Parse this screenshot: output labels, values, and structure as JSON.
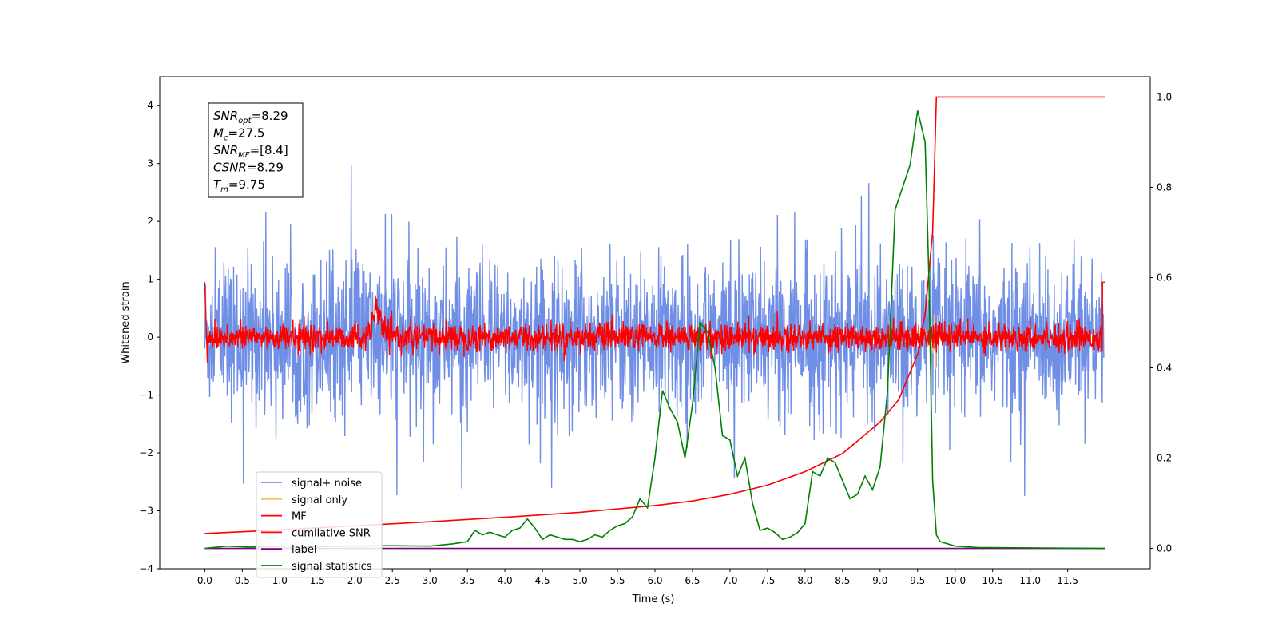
{
  "chart_data": {
    "type": "line",
    "title": "",
    "xlabel": "Time (s)",
    "ylabel": "Whitened strain",
    "y2label": "",
    "xlim": [
      -0.6,
      12.6
    ],
    "ylim": [
      -4,
      4.5
    ],
    "y2lim": [
      -0.045,
      1.045
    ],
    "xticks": [
      "0.0",
      "0.5",
      "1.0",
      "1.5",
      "2.0",
      "2.5",
      "3.0",
      "3.5",
      "4.0",
      "4.5",
      "5.0",
      "5.5",
      "6.0",
      "6.5",
      "7.0",
      "7.5",
      "8.0",
      "8.5",
      "9.0",
      "9.5",
      "10.0",
      "10.5",
      "11.0",
      "11.5"
    ],
    "xtick_values": [
      0,
      0.5,
      1,
      1.5,
      2,
      2.5,
      3,
      3.5,
      4,
      4.5,
      5,
      5.5,
      6,
      6.5,
      7,
      7.5,
      8,
      8.5,
      9,
      9.5,
      10,
      10.5,
      11,
      11.5
    ],
    "yticks": [
      "4",
      "3",
      "2",
      "1",
      "0",
      "−1",
      "−2",
      "−3",
      "−4"
    ],
    "ytick_values": [
      4,
      3,
      2,
      1,
      0,
      -1,
      -2,
      -3,
      -4
    ],
    "y2ticks": [
      "1.0",
      "0.8",
      "0.6",
      "0.4",
      "0.2",
      "0.0"
    ],
    "y2tick_values": [
      1.0,
      0.8,
      0.6,
      0.4,
      0.2,
      0.0
    ],
    "grid": false,
    "legend_position": "lower-left",
    "series": [
      {
        "name": "signal+ noise",
        "axis": "left",
        "color": "#6f8ee6",
        "noise_std": 0.65,
        "x_start": 0,
        "x_end": 11.98
      },
      {
        "name": "signal only",
        "axis": "left",
        "color": "#f5c26b",
        "chirp_peak_time": 9.75,
        "peak_amplitude": 0.55
      },
      {
        "name": "MF",
        "axis": "left",
        "color": "#ff0000",
        "noise_std": 0.12,
        "bump_time": 2.3,
        "bump_amplitude": 0.45
      },
      {
        "name": "cumilative SNR",
        "axis": "right",
        "color": "#ff0000",
        "x": [
          0,
          1,
          2,
          3,
          4,
          5,
          6,
          6.5,
          7,
          7.5,
          8,
          8.5,
          9,
          9.25,
          9.5,
          9.6,
          9.7,
          9.75,
          12
        ],
        "y": [
          0.033,
          0.041,
          0.05,
          0.059,
          0.069,
          0.08,
          0.095,
          0.105,
          0.12,
          0.14,
          0.17,
          0.21,
          0.28,
          0.33,
          0.43,
          0.52,
          0.7,
          1.0,
          1.0
        ]
      },
      {
        "name": "label",
        "axis": "right",
        "color": "#800080",
        "x": [
          0,
          12
        ],
        "y": [
          0,
          0
        ]
      },
      {
        "name": "signal statistics",
        "axis": "right",
        "color": "#008000",
        "x": [
          0,
          0.3,
          0.6,
          1,
          1.5,
          2,
          2.5,
          3,
          3.3,
          3.5,
          3.6,
          3.7,
          3.8,
          3.9,
          4.0,
          4.1,
          4.2,
          4.3,
          4.4,
          4.5,
          4.6,
          4.7,
          4.8,
          4.9,
          5.0,
          5.1,
          5.2,
          5.3,
          5.4,
          5.5,
          5.6,
          5.7,
          5.8,
          5.9,
          6.0,
          6.1,
          6.2,
          6.3,
          6.4,
          6.5,
          6.6,
          6.7,
          6.8,
          6.9,
          7.0,
          7.1,
          7.2,
          7.3,
          7.4,
          7.5,
          7.6,
          7.7,
          7.8,
          7.9,
          8.0,
          8.1,
          8.2,
          8.3,
          8.4,
          8.5,
          8.6,
          8.7,
          8.8,
          8.9,
          9.0,
          9.1,
          9.2,
          9.3,
          9.4,
          9.5,
          9.6,
          9.65,
          9.7,
          9.75,
          9.8,
          9.9,
          10.0,
          10.3,
          12
        ],
        "y": [
          0,
          0.005,
          0.003,
          0.005,
          0.004,
          0.005,
          0.006,
          0.005,
          0.01,
          0.015,
          0.04,
          0.03,
          0.036,
          0.03,
          0.025,
          0.04,
          0.045,
          0.065,
          0.045,
          0.02,
          0.03,
          0.025,
          0.02,
          0.02,
          0.015,
          0.02,
          0.03,
          0.025,
          0.04,
          0.05,
          0.055,
          0.07,
          0.11,
          0.09,
          0.2,
          0.35,
          0.31,
          0.28,
          0.2,
          0.32,
          0.5,
          0.48,
          0.4,
          0.25,
          0.24,
          0.16,
          0.2,
          0.1,
          0.04,
          0.045,
          0.035,
          0.02,
          0.025,
          0.035,
          0.055,
          0.17,
          0.16,
          0.2,
          0.19,
          0.15,
          0.11,
          0.12,
          0.16,
          0.13,
          0.18,
          0.35,
          0.75,
          0.8,
          0.85,
          0.97,
          0.9,
          0.6,
          0.15,
          0.03,
          0.015,
          0.01,
          0.005,
          0.002,
          0
        ]
      }
    ],
    "annotation": {
      "lines": [
        {
          "main": "SNR",
          "sub": "opt",
          "value": "=8.29"
        },
        {
          "main": "M",
          "sub": "c",
          "value": "=27.5"
        },
        {
          "main": "SNR",
          "sub": "MF",
          "value": "=[8.4]"
        },
        {
          "main": "CSNR",
          "sub": "",
          "value": "=8.29"
        },
        {
          "main": "T",
          "sub": "m",
          "value": "=9.75"
        }
      ]
    }
  }
}
